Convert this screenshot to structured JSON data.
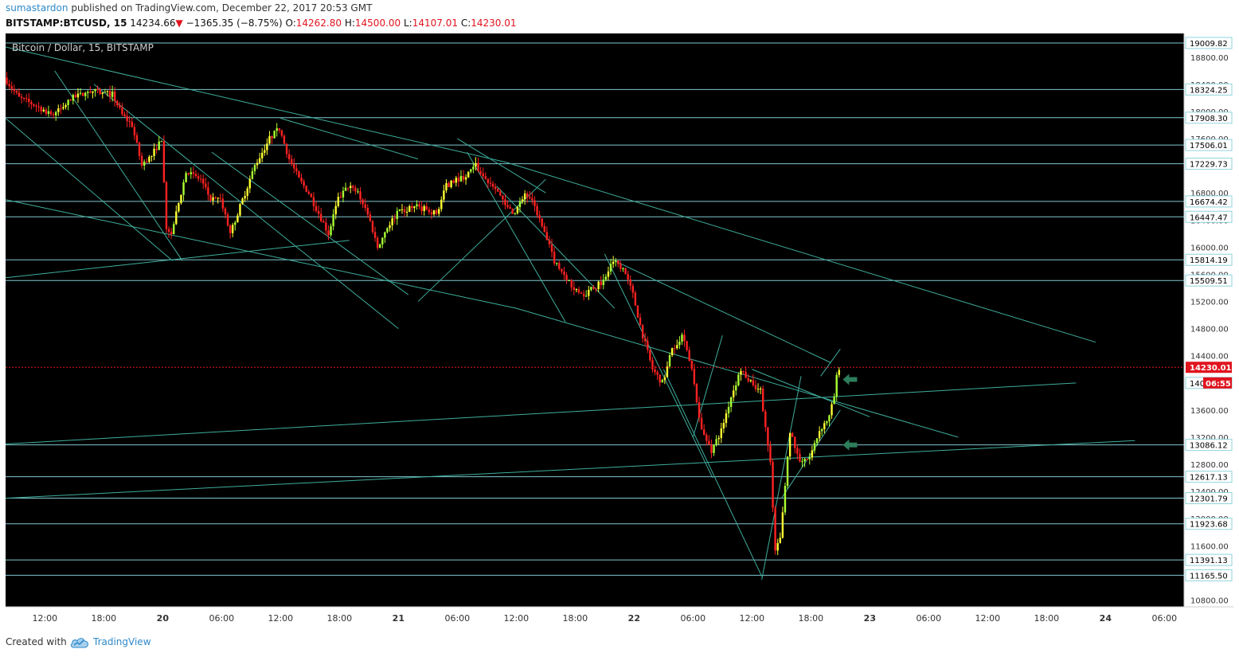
{
  "header": {
    "author": "sumastardon",
    "published_text": "published on TradingView.com, December 22, 2017 20:53 GMT",
    "symbol": "BITSTAMP:BTCUSD, 15",
    "last": "14234.66",
    "arrow": "▼",
    "change": "−1365.35 (−8.75%)",
    "o_label": "O:",
    "o_value": "14262.80",
    "h_label": "H:",
    "h_value": "14500.00",
    "l_label": "L:",
    "l_value": "14107.01",
    "c_label": "C:",
    "c_value": "14230.01"
  },
  "footer": {
    "created_with": "Created with",
    "brand": "TradingView"
  },
  "colors": {
    "background": "#000000",
    "up": "#ffff33",
    "up_bright": "#aaff33",
    "down": "#ff2222",
    "trendline": "#3fae9d",
    "level": "#7fc7cf",
    "price_line": "#e0141e",
    "arrow": "#2e7d5b"
  },
  "chart_data": {
    "type": "candlestick",
    "title": "Bitcoin / Dollar, 15, BITSTAMP",
    "interval": "15",
    "exchange": "BITSTAMP",
    "x_ticks": [
      "12:00",
      "18:00",
      "20",
      "06:00",
      "12:00",
      "18:00",
      "21",
      "06:00",
      "12:00",
      "18:00",
      "22",
      "06:00",
      "12:00",
      "18:00",
      "23",
      "06:00",
      "12:00",
      "18:00",
      "24",
      "06:00"
    ],
    "y_ticks": [
      18800,
      18400,
      18000,
      17600,
      17200,
      16800,
      16400,
      16000,
      15600,
      15200,
      14800,
      14400,
      14000,
      13600,
      13200,
      12800,
      12400,
      12000,
      11600,
      11200,
      10800
    ],
    "ylim": [
      10700,
      19150
    ],
    "horizontal_levels": [
      19009.82,
      18324.25,
      17908.3,
      17506.01,
      17229.73,
      16674.42,
      16447.47,
      15814.19,
      15509.51,
      13086.12,
      12617.13,
      12301.79,
      11923.68,
      11391.13,
      11165.5
    ],
    "hidden_level": 14000,
    "current_price": "14230.01",
    "countdown": "06:55",
    "time_start": "2017-12-19 08:00",
    "time_end": "2017-12-24 08:00",
    "price_path": [
      [
        "2017-12-19 08:00",
        18500
      ],
      [
        "2017-12-19 09:30",
        18200
      ],
      [
        "2017-12-19 11:00",
        18100
      ],
      [
        "2017-12-19 13:00",
        17950
      ],
      [
        "2017-12-19 15:00",
        18200
      ],
      [
        "2017-12-19 17:00",
        18300
      ],
      [
        "2017-12-19 19:00",
        18250
      ],
      [
        "2017-12-19 20:00",
        17950
      ],
      [
        "2017-12-19 21:00",
        17800
      ],
      [
        "2017-12-19 22:00",
        17200
      ],
      [
        "2017-12-19 23:00",
        17350
      ],
      [
        "2017-12-20 00:00",
        17600
      ],
      [
        "2017-12-20 00:30",
        16300
      ],
      [
        "2017-12-20 01:00",
        16200
      ],
      [
        "2017-12-20 02:30",
        17100
      ],
      [
        "2017-12-20 04:00",
        17000
      ],
      [
        "2017-12-20 05:00",
        16700
      ],
      [
        "2017-12-20 06:00",
        16700
      ],
      [
        "2017-12-20 07:00",
        16200
      ],
      [
        "2017-12-20 08:00",
        16600
      ],
      [
        "2017-12-20 09:30",
        17200
      ],
      [
        "2017-12-20 11:00",
        17600
      ],
      [
        "2017-12-20 12:00",
        17750
      ],
      [
        "2017-12-20 13:00",
        17300
      ],
      [
        "2017-12-20 14:00",
        17000
      ],
      [
        "2017-12-20 15:00",
        16800
      ],
      [
        "2017-12-20 16:00",
        16500
      ],
      [
        "2017-12-20 17:00",
        16200
      ],
      [
        "2017-12-20 18:00",
        16700
      ],
      [
        "2017-12-20 19:00",
        16900
      ],
      [
        "2017-12-20 20:00",
        16800
      ],
      [
        "2017-12-20 21:00",
        16500
      ],
      [
        "2017-12-20 22:00",
        16000
      ],
      [
        "2017-12-20 23:00",
        16300
      ],
      [
        "2017-12-21 00:00",
        16500
      ],
      [
        "2017-12-21 02:00",
        16600
      ],
      [
        "2017-12-21 04:00",
        16500
      ],
      [
        "2017-12-21 05:00",
        16900
      ],
      [
        "2017-12-21 06:00",
        17000
      ],
      [
        "2017-12-21 07:00",
        17050
      ],
      [
        "2017-12-21 08:00",
        17200
      ],
      [
        "2017-12-21 09:00",
        17000
      ],
      [
        "2017-12-21 10:00",
        16900
      ],
      [
        "2017-12-21 11:00",
        16600
      ],
      [
        "2017-12-21 12:00",
        16500
      ],
      [
        "2017-12-21 13:00",
        16800
      ],
      [
        "2017-12-21 14:00",
        16600
      ],
      [
        "2017-12-21 15:00",
        16200
      ],
      [
        "2017-12-21 16:00",
        15800
      ],
      [
        "2017-12-21 17:00",
        15600
      ],
      [
        "2017-12-21 18:00",
        15400
      ],
      [
        "2017-12-21 19:00",
        15300
      ],
      [
        "2017-12-21 20:00",
        15400
      ],
      [
        "2017-12-21 21:00",
        15500
      ],
      [
        "2017-12-21 22:00",
        15800
      ],
      [
        "2017-12-21 23:00",
        15700
      ],
      [
        "2017-12-22 00:00",
        15300
      ],
      [
        "2017-12-22 01:00",
        14700
      ],
      [
        "2017-12-22 02:00",
        14200
      ],
      [
        "2017-12-22 03:00",
        14000
      ],
      [
        "2017-12-22 04:00",
        14500
      ],
      [
        "2017-12-22 05:00",
        14700
      ],
      [
        "2017-12-22 06:00",
        14200
      ],
      [
        "2017-12-22 07:00",
        13300
      ],
      [
        "2017-12-22 08:00",
        13000
      ],
      [
        "2017-12-22 09:00",
        13300
      ],
      [
        "2017-12-22 10:00",
        13800
      ],
      [
        "2017-12-22 11:00",
        14200
      ],
      [
        "2017-12-22 12:00",
        14000
      ],
      [
        "2017-12-22 13:00",
        13900
      ],
      [
        "2017-12-22 14:00",
        12800
      ],
      [
        "2017-12-22 14:30",
        11500
      ],
      [
        "2017-12-22 15:00",
        11700
      ],
      [
        "2017-12-22 15:30",
        12500
      ],
      [
        "2017-12-22 16:00",
        13300
      ],
      [
        "2017-12-22 17:00",
        12800
      ],
      [
        "2017-12-22 18:00",
        12900
      ],
      [
        "2017-12-22 19:00",
        13300
      ],
      [
        "2017-12-22 20:00",
        13500
      ],
      [
        "2017-12-22 20:30",
        13800
      ],
      [
        "2017-12-22 20:53",
        14230
      ]
    ],
    "trend_lines": [
      [
        [
          "2017-12-19 08:00",
          18950
        ],
        [
          "2017-12-21 11:00",
          17250
        ],
        [
          "2017-12-23 23:00",
          14600
        ]
      ],
      [
        [
          "2017-12-19 08:00",
          16700
        ],
        [
          "2017-12-21 12:00",
          15100
        ],
        [
          "2017-12-23 09:00",
          13200
        ]
      ],
      [
        [
          "2017-12-19 08:00",
          13100
        ],
        [
          "2017-12-23 21:00",
          14000
        ]
      ],
      [
        [
          "2017-12-19 08:00",
          12300
        ],
        [
          "2017-12-24 03:00",
          13150
        ]
      ],
      [
        [
          "2017-12-19 08:00",
          17900
        ],
        [
          "2017-12-20 01:00",
          15800
        ]
      ],
      [
        [
          "2017-12-19 08:00",
          15550
        ],
        [
          "2017-12-20 19:00",
          16100
        ]
      ],
      [
        [
          "2017-12-19 13:00",
          18600
        ],
        [
          "2017-12-20 02:00",
          15800
        ]
      ],
      [
        [
          "2017-12-19 17:00",
          18400
        ],
        [
          "2017-12-21 00:00",
          14800
        ]
      ],
      [
        [
          "2017-12-20 05:00",
          17400
        ],
        [
          "2017-12-21 01:00",
          15300
        ]
      ],
      [
        [
          "2017-12-20 12:00",
          17900
        ],
        [
          "2017-12-21 02:00",
          17300
        ]
      ],
      [
        [
          "2017-12-21 02:00",
          15200
        ],
        [
          "2017-12-21 15:00",
          17000
        ]
      ],
      [
        [
          "2017-12-21 06:00",
          17600
        ],
        [
          "2017-12-21 15:00",
          16800
        ]
      ],
      [
        [
          "2017-12-21 07:00",
          17400
        ],
        [
          "2017-12-21 17:00",
          14900
        ]
      ],
      [
        [
          "2017-12-21 10:00",
          16900
        ],
        [
          "2017-12-21 22:00",
          15100
        ]
      ],
      [
        [
          "2017-12-21 21:00",
          15900
        ],
        [
          "2017-12-22 08:00",
          12600
        ]
      ],
      [
        [
          "2017-12-21 22:00",
          15800
        ],
        [
          "2017-12-22 20:00",
          14300
        ]
      ],
      [
        [
          "2017-12-22 03:00",
          14200
        ],
        [
          "2017-12-22 13:00",
          11150
        ]
      ],
      [
        [
          "2017-12-22 06:00",
          13200
        ],
        [
          "2017-12-22 09:00",
          14700
        ]
      ],
      [
        [
          "2017-12-22 13:00",
          11100
        ],
        [
          "2017-12-22 17:00",
          14100
        ]
      ],
      [
        [
          "2017-12-22 15:00",
          12300
        ],
        [
          "2017-12-22 21:00",
          13600
        ]
      ],
      [
        [
          "2017-12-22 12:00",
          14200
        ],
        [
          "2017-12-23 00:00",
          13500
        ]
      ],
      [
        [
          "2017-12-22 19:00",
          14100
        ],
        [
          "2017-12-22 21:00",
          14500
        ]
      ]
    ],
    "markers": [
      {
        "time": "2017-12-22 21:15",
        "price": 14050,
        "type": "arrow-left"
      },
      {
        "time": "2017-12-22 21:15",
        "price": 13086,
        "type": "arrow-left"
      }
    ]
  }
}
